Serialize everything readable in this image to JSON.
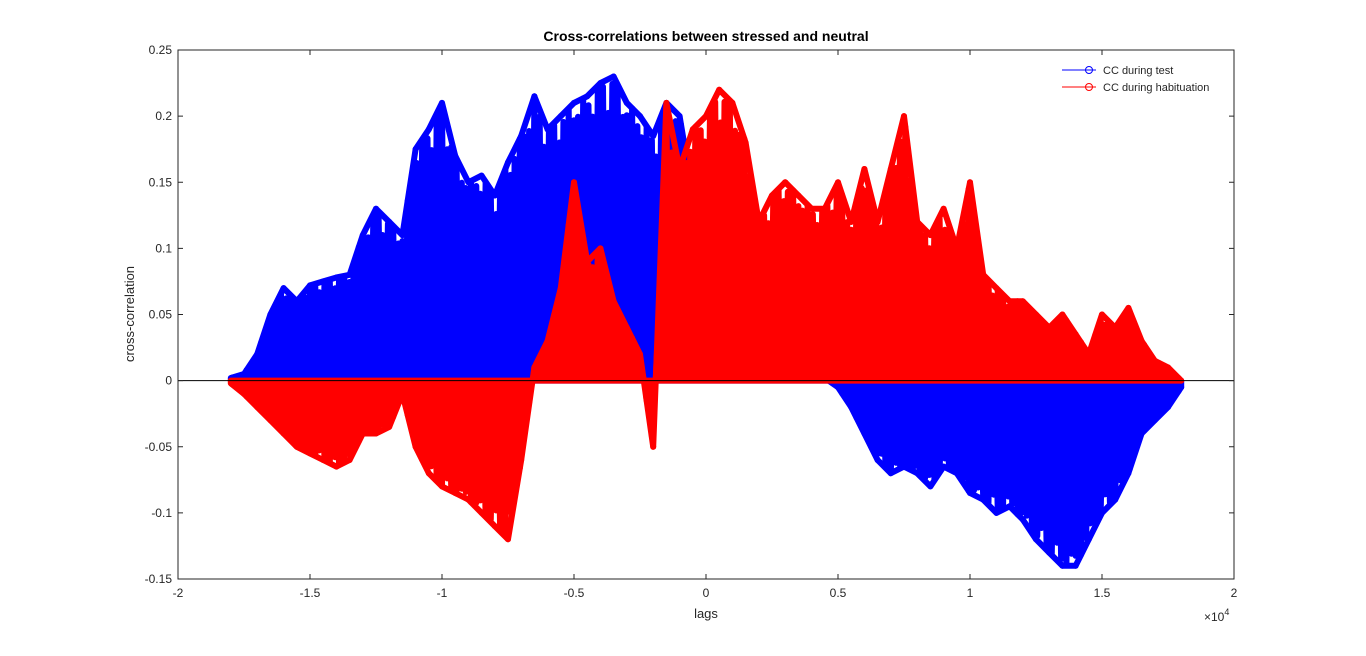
{
  "chart_data": {
    "type": "area",
    "title": "Cross-correlations between stressed and neutral",
    "xlabel": "lags",
    "ylabel": "cross-correlation",
    "x_exponent_label": "×10",
    "x_exponent_power": "4",
    "xlim": [
      -20000,
      20000
    ],
    "ylim": [
      -0.15,
      0.25
    ],
    "x_ticks": [
      -20000,
      -15000,
      -10000,
      -5000,
      0,
      5000,
      10000,
      15000,
      20000
    ],
    "x_tick_labels": [
      "-2",
      "-1.5",
      "-1",
      "-0.5",
      "0",
      "0.5",
      "1",
      "1.5",
      "2"
    ],
    "y_ticks": [
      -0.15,
      -0.1,
      -0.05,
      0,
      0.05,
      0.1,
      0.15,
      0.2,
      0.25
    ],
    "y_tick_labels": [
      "-0.15",
      "-0.1",
      "-0.05",
      "0",
      "0.05",
      "0.1",
      "0.15",
      "0.2",
      "0.25"
    ],
    "grid": false,
    "legend_position": "top-right",
    "series": [
      {
        "name": "CC during test",
        "color": "#0000ff",
        "x": [
          -18000,
          -17500,
          -17000,
          -16500,
          -16000,
          -15500,
          -15000,
          -14500,
          -14000,
          -13500,
          -13000,
          -12500,
          -12000,
          -11500,
          -11000,
          -10500,
          -10000,
          -9500,
          -9000,
          -8500,
          -8000,
          -7500,
          -7000,
          -6500,
          -6000,
          -5500,
          -5000,
          -4500,
          -4000,
          -3500,
          -3000,
          -2500,
          -2000,
          -1500,
          -1000,
          -500,
          0,
          500,
          1000,
          1500,
          2000,
          2500,
          3000,
          3500,
          4000,
          4500,
          5000,
          5500,
          6000,
          6500,
          7000,
          7500,
          8000,
          8500,
          9000,
          9500,
          10000,
          10500,
          11000,
          11500,
          12000,
          12500,
          13000,
          13500,
          14000,
          14500,
          15000,
          15500,
          16000,
          16500,
          17000,
          17500,
          18000
        ],
        "y": [
          0.002,
          0.005,
          0.02,
          0.05,
          0.07,
          0.06,
          0.072,
          0.075,
          0.078,
          0.08,
          0.11,
          0.13,
          0.12,
          0.11,
          0.175,
          0.19,
          0.21,
          0.17,
          0.15,
          0.155,
          0.14,
          0.165,
          0.185,
          0.215,
          0.19,
          0.2,
          0.21,
          0.215,
          0.225,
          0.23,
          0.21,
          0.2,
          0.185,
          0.21,
          0.2,
          0.14,
          0.11,
          0.07,
          0.05,
          0.04,
          0.03,
          0.02,
          0.015,
          0.008,
          0.005,
          0.002,
          -0.005,
          -0.02,
          -0.04,
          -0.06,
          -0.07,
          -0.065,
          -0.07,
          -0.08,
          -0.065,
          -0.07,
          -0.085,
          -0.09,
          -0.1,
          -0.095,
          -0.105,
          -0.12,
          -0.13,
          -0.14,
          -0.14,
          -0.12,
          -0.1,
          -0.09,
          -0.07,
          -0.04,
          -0.03,
          -0.02,
          -0.005
        ]
      },
      {
        "name": "CC during habituation",
        "color": "#ff0000",
        "x": [
          -18000,
          -17500,
          -17000,
          -16500,
          -16000,
          -15500,
          -15000,
          -14500,
          -14000,
          -13500,
          -13000,
          -12500,
          -12000,
          -11500,
          -11000,
          -10500,
          -10000,
          -9500,
          -9000,
          -8500,
          -8000,
          -7500,
          -7000,
          -6500,
          -6000,
          -5500,
          -5000,
          -4500,
          -4000,
          -3500,
          -3000,
          -2500,
          -2000,
          -1500,
          -1000,
          -500,
          0,
          500,
          1000,
          1500,
          2000,
          2500,
          3000,
          3500,
          4000,
          4500,
          5000,
          5500,
          6000,
          6500,
          7000,
          7500,
          8000,
          8500,
          9000,
          9500,
          10000,
          10500,
          11000,
          11500,
          12000,
          12500,
          13000,
          13500,
          14000,
          14500,
          15000,
          15500,
          16000,
          16500,
          17000,
          17500,
          18000
        ],
        "y": [
          -0.002,
          -0.01,
          -0.02,
          -0.03,
          -0.04,
          -0.05,
          -0.055,
          -0.06,
          -0.065,
          -0.06,
          -0.04,
          -0.04,
          -0.035,
          -0.01,
          -0.05,
          -0.07,
          -0.08,
          -0.085,
          -0.09,
          -0.1,
          -0.11,
          -0.12,
          -0.06,
          0.01,
          0.03,
          0.07,
          0.15,
          0.09,
          0.1,
          0.06,
          0.04,
          0.02,
          -0.05,
          0.21,
          0.16,
          0.19,
          0.2,
          0.22,
          0.21,
          0.18,
          0.12,
          0.14,
          0.15,
          0.14,
          0.13,
          0.13,
          0.15,
          0.12,
          0.16,
          0.12,
          0.16,
          0.2,
          0.12,
          0.11,
          0.13,
          0.1,
          0.15,
          0.08,
          0.07,
          0.06,
          0.06,
          0.05,
          0.04,
          0.05,
          0.035,
          0.02,
          0.05,
          0.04,
          0.055,
          0.03,
          0.015,
          0.01,
          0.0
        ]
      }
    ]
  }
}
